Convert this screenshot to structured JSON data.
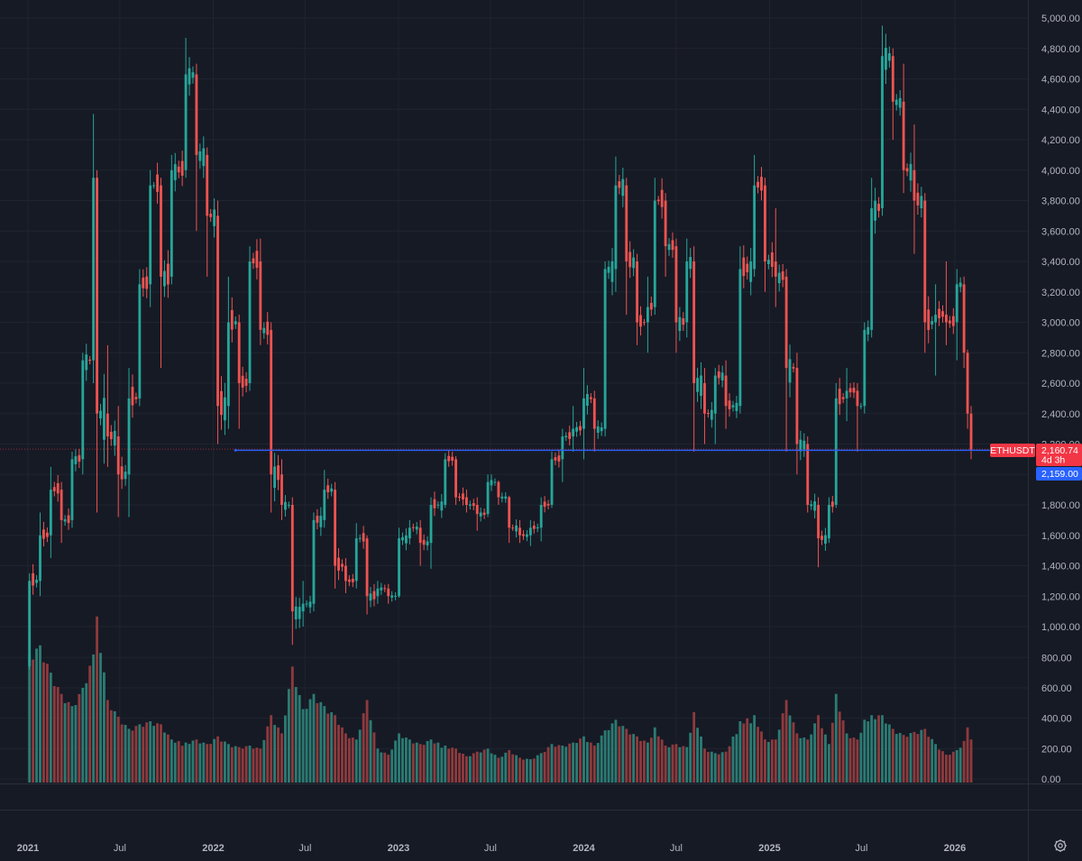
{
  "chart_data": {
    "type": "candlestick",
    "symbol": "ETHUSDT",
    "interval": "weekly",
    "price_axis": {
      "min": 0,
      "max": 5000,
      "ticks": [
        "5,000.00",
        "4,800.00",
        "4,600.00",
        "4,400.00",
        "4,200.00",
        "4,000.00",
        "3,800.00",
        "3,600.00",
        "3,400.00",
        "3,200.00",
        "3,000.00",
        "2,800.00",
        "2,600.00",
        "2,400.00",
        "2,200.00",
        "2,000.00",
        "1,800.00",
        "1,600.00",
        "1,400.00",
        "1,200.00",
        "1,000.00"
      ],
      "tick_values": [
        5000,
        4800,
        4600,
        4400,
        4200,
        4000,
        3800,
        3600,
        3400,
        3200,
        3000,
        2800,
        2600,
        2400,
        2200,
        2000,
        1800,
        1600,
        1400,
        1200,
        1000
      ]
    },
    "volume_axis": {
      "ticks": [
        "800.00",
        "600.00",
        "400.00",
        "200.00",
        "0.00"
      ],
      "tick_values": [
        800,
        600,
        400,
        200,
        0
      ]
    },
    "time_axis": {
      "labels": [
        {
          "text": "2021",
          "date": "2021-01-01",
          "year": true
        },
        {
          "text": "Jul",
          "date": "2021-07-01",
          "year": false
        },
        {
          "text": "2022",
          "date": "2022-01-01",
          "year": true
        },
        {
          "text": "Jul",
          "date": "2022-07-01",
          "year": false
        },
        {
          "text": "2023",
          "date": "2023-01-01",
          "year": true
        },
        {
          "text": "Jul",
          "date": "2023-07-01",
          "year": false
        },
        {
          "text": "2024",
          "date": "2024-01-01",
          "year": true
        },
        {
          "text": "Jul",
          "date": "2024-07-01",
          "year": false
        },
        {
          "text": "2025",
          "date": "2025-01-01",
          "year": true
        },
        {
          "text": "Jul",
          "date": "2025-07-01",
          "year": false
        },
        {
          "text": "2026",
          "date": "2026-01-01",
          "year": true
        }
      ]
    },
    "horizontal_line": {
      "price": 2159.0,
      "label": "2,159.00",
      "color": "#2962ff",
      "start_date": "2022-02-14"
    },
    "last_price": {
      "value": 2160.74,
      "label": "ETHUSDT",
      "price_text": "2,160.74",
      "countdown": "4d 3h",
      "color": "#f23645"
    },
    "colors": {
      "up": "#26a69a",
      "down": "#ef5350",
      "background": "#161a25",
      "grid": "#1f2430",
      "line": "#2962ff"
    },
    "grid": true,
    "candles": [
      {
        "date": "2021-01-04",
        "open": 740,
        "high": 1350,
        "low": 720,
        "close": 1300,
        "volume": 820
      },
      {
        "date": "2021-01-25",
        "open": 1300,
        "high": 1750,
        "low": 1200,
        "close": 1600,
        "volume": 880
      },
      {
        "date": "2021-02-15",
        "open": 1600,
        "high": 2050,
        "low": 1450,
        "close": 1900,
        "volume": 700
      },
      {
        "date": "2021-03-08",
        "open": 1900,
        "high": 1950,
        "low": 1550,
        "close": 1700,
        "volume": 560
      },
      {
        "date": "2021-03-29",
        "open": 1700,
        "high": 2150,
        "low": 1650,
        "close": 2100,
        "volume": 480
      },
      {
        "date": "2021-04-19",
        "open": 2100,
        "high": 2800,
        "low": 2000,
        "close": 2750,
        "volume": 600
      },
      {
        "date": "2021-05-10",
        "open": 2750,
        "high": 4370,
        "low": 2600,
        "close": 3950,
        "volume": 820
      },
      {
        "date": "2021-05-17",
        "open": 3950,
        "high": 4000,
        "low": 1750,
        "close": 2400,
        "volume": 1070
      },
      {
        "date": "2021-06-07",
        "open": 2400,
        "high": 2850,
        "low": 2050,
        "close": 2250,
        "volume": 520
      },
      {
        "date": "2021-06-28",
        "open": 2250,
        "high": 2450,
        "low": 1720,
        "close": 2000,
        "volume": 410
      },
      {
        "date": "2021-07-19",
        "open": 2000,
        "high": 2700,
        "low": 1720,
        "close": 2500,
        "volume": 330
      },
      {
        "date": "2021-08-09",
        "open": 2500,
        "high": 3350,
        "low": 2450,
        "close": 3250,
        "volume": 360
      },
      {
        "date": "2021-08-30",
        "open": 3250,
        "high": 4000,
        "low": 3100,
        "close": 3900,
        "volume": 380
      },
      {
        "date": "2021-09-20",
        "open": 3900,
        "high": 3950,
        "low": 2700,
        "close": 3300,
        "volume": 360
      },
      {
        "date": "2021-10-11",
        "open": 3300,
        "high": 4100,
        "low": 3250,
        "close": 4000,
        "volume": 260
      },
      {
        "date": "2021-11-08",
        "open": 4000,
        "high": 4870,
        "low": 3950,
        "close": 4630,
        "volume": 240
      },
      {
        "date": "2021-11-29",
        "open": 4630,
        "high": 4700,
        "low": 3600,
        "close": 4100,
        "volume": 260
      },
      {
        "date": "2021-12-20",
        "open": 4100,
        "high": 4150,
        "low": 3300,
        "close": 3700,
        "volume": 230
      },
      {
        "date": "2022-01-10",
        "open": 3700,
        "high": 3800,
        "low": 2200,
        "close": 2450,
        "volume": 280
      },
      {
        "date": "2022-01-31",
        "open": 2450,
        "high": 3300,
        "low": 2300,
        "close": 3000,
        "volume": 230
      },
      {
        "date": "2022-02-21",
        "open": 3000,
        "high": 3050,
        "low": 2300,
        "close": 2600,
        "volume": 210
      },
      {
        "date": "2022-03-14",
        "open": 2600,
        "high": 3500,
        "low": 2550,
        "close": 3400,
        "volume": 220
      },
      {
        "date": "2022-04-04",
        "open": 3400,
        "high": 3550,
        "low": 2850,
        "close": 2950,
        "volume": 200
      },
      {
        "date": "2022-04-25",
        "open": 2950,
        "high": 3000,
        "low": 1750,
        "close": 2000,
        "volume": 420
      },
      {
        "date": "2022-05-16",
        "open": 2000,
        "high": 2100,
        "low": 1700,
        "close": 1800,
        "volume": 300
      },
      {
        "date": "2022-06-06",
        "open": 1800,
        "high": 1850,
        "low": 880,
        "close": 1100,
        "volume": 740
      },
      {
        "date": "2022-06-27",
        "open": 1100,
        "high": 1300,
        "low": 1000,
        "close": 1150,
        "volume": 460
      },
      {
        "date": "2022-07-18",
        "open": 1150,
        "high": 1750,
        "low": 1100,
        "close": 1700,
        "volume": 560
      },
      {
        "date": "2022-08-08",
        "open": 1700,
        "high": 2030,
        "low": 1650,
        "close": 1900,
        "volume": 480
      },
      {
        "date": "2022-08-29",
        "open": 1900,
        "high": 1950,
        "low": 1250,
        "close": 1400,
        "volume": 420
      },
      {
        "date": "2022-09-19",
        "open": 1400,
        "high": 1450,
        "low": 1220,
        "close": 1300,
        "volume": 300
      },
      {
        "date": "2022-10-10",
        "open": 1300,
        "high": 1680,
        "low": 1250,
        "close": 1580,
        "volume": 260
      },
      {
        "date": "2022-10-31",
        "open": 1580,
        "high": 1600,
        "low": 1080,
        "close": 1200,
        "volume": 520
      },
      {
        "date": "2022-11-21",
        "open": 1200,
        "high": 1300,
        "low": 1150,
        "close": 1250,
        "volume": 200
      },
      {
        "date": "2022-12-12",
        "open": 1250,
        "high": 1280,
        "low": 1150,
        "close": 1200,
        "volume": 160
      },
      {
        "date": "2023-01-02",
        "open": 1200,
        "high": 1650,
        "low": 1190,
        "close": 1580,
        "volume": 300
      },
      {
        "date": "2023-01-23",
        "open": 1580,
        "high": 1700,
        "low": 1540,
        "close": 1650,
        "volume": 260
      },
      {
        "date": "2023-02-13",
        "open": 1650,
        "high": 1700,
        "low": 1400,
        "close": 1550,
        "volume": 230
      },
      {
        "date": "2023-03-06",
        "open": 1550,
        "high": 1850,
        "low": 1380,
        "close": 1800,
        "volume": 260
      },
      {
        "date": "2023-04-03",
        "open": 1800,
        "high": 2140,
        "low": 1780,
        "close": 2100,
        "volume": 220
      },
      {
        "date": "2023-04-24",
        "open": 2100,
        "high": 2120,
        "low": 1800,
        "close": 1850,
        "volume": 200
      },
      {
        "date": "2023-05-15",
        "open": 1850,
        "high": 1900,
        "low": 1750,
        "close": 1800,
        "volume": 150
      },
      {
        "date": "2023-06-05",
        "open": 1800,
        "high": 1850,
        "low": 1630,
        "close": 1740,
        "volume": 180
      },
      {
        "date": "2023-06-26",
        "open": 1740,
        "high": 2000,
        "low": 1720,
        "close": 1950,
        "volume": 200
      },
      {
        "date": "2023-07-17",
        "open": 1950,
        "high": 1960,
        "low": 1800,
        "close": 1850,
        "volume": 140
      },
      {
        "date": "2023-08-07",
        "open": 1850,
        "high": 1860,
        "low": 1550,
        "close": 1650,
        "volume": 190
      },
      {
        "date": "2023-08-28",
        "open": 1650,
        "high": 1700,
        "low": 1550,
        "close": 1600,
        "volume": 140
      },
      {
        "date": "2023-09-18",
        "open": 1600,
        "high": 1700,
        "low": 1530,
        "close": 1650,
        "volume": 130
      },
      {
        "date": "2023-10-09",
        "open": 1650,
        "high": 1850,
        "low": 1560,
        "close": 1800,
        "volume": 170
      },
      {
        "date": "2023-10-30",
        "open": 1800,
        "high": 2150,
        "low": 1780,
        "close": 2100,
        "volume": 230
      },
      {
        "date": "2023-11-20",
        "open": 2100,
        "high": 2300,
        "low": 1950,
        "close": 2250,
        "volume": 220
      },
      {
        "date": "2023-12-11",
        "open": 2250,
        "high": 2450,
        "low": 2150,
        "close": 2300,
        "volume": 240
      },
      {
        "date": "2024-01-01",
        "open": 2300,
        "high": 2700,
        "low": 2100,
        "close": 2500,
        "volume": 280
      },
      {
        "date": "2024-01-22",
        "open": 2500,
        "high": 2550,
        "low": 2150,
        "close": 2300,
        "volume": 220
      },
      {
        "date": "2024-02-12",
        "open": 2300,
        "high": 3400,
        "low": 2250,
        "close": 3350,
        "volume": 320
      },
      {
        "date": "2024-03-04",
        "open": 3350,
        "high": 4090,
        "low": 3200,
        "close": 3900,
        "volume": 390
      },
      {
        "date": "2024-03-25",
        "open": 3900,
        "high": 3950,
        "low": 3050,
        "close": 3400,
        "volume": 330
      },
      {
        "date": "2024-04-15",
        "open": 3400,
        "high": 3450,
        "low": 2850,
        "close": 3000,
        "volume": 280
      },
      {
        "date": "2024-05-06",
        "open": 3000,
        "high": 3300,
        "low": 2800,
        "close": 3100,
        "volume": 240
      },
      {
        "date": "2024-05-20",
        "open": 3100,
        "high": 3950,
        "low": 3050,
        "close": 3800,
        "volume": 340
      },
      {
        "date": "2024-06-10",
        "open": 3800,
        "high": 3850,
        "low": 3300,
        "close": 3500,
        "volume": 220
      },
      {
        "date": "2024-07-01",
        "open": 3500,
        "high": 3550,
        "low": 2800,
        "close": 3000,
        "volume": 230
      },
      {
        "date": "2024-07-22",
        "open": 3000,
        "high": 3550,
        "low": 2900,
        "close": 3400,
        "volume": 210
      },
      {
        "date": "2024-08-05",
        "open": 3400,
        "high": 3500,
        "low": 2150,
        "close": 2600,
        "volume": 440
      },
      {
        "date": "2024-08-26",
        "open": 2600,
        "high": 2700,
        "low": 2200,
        "close": 2400,
        "volume": 200
      },
      {
        "date": "2024-09-16",
        "open": 2400,
        "high": 2700,
        "low": 2200,
        "close": 2650,
        "volume": 170
      },
      {
        "date": "2024-10-07",
        "open": 2650,
        "high": 2750,
        "low": 2300,
        "close": 2450,
        "volume": 180
      },
      {
        "date": "2024-11-04",
        "open": 2450,
        "high": 3500,
        "low": 2400,
        "close": 3350,
        "volume": 380
      },
      {
        "date": "2024-12-02",
        "open": 3350,
        "high": 4100,
        "low": 3300,
        "close": 3900,
        "volume": 420
      },
      {
        "date": "2024-12-23",
        "open": 3900,
        "high": 3950,
        "low": 3200,
        "close": 3400,
        "volume": 260
      },
      {
        "date": "2025-01-13",
        "open": 3400,
        "high": 3750,
        "low": 3100,
        "close": 3300,
        "volume": 260
      },
      {
        "date": "2025-02-03",
        "open": 3300,
        "high": 3350,
        "low": 2150,
        "close": 2700,
        "volume": 520
      },
      {
        "date": "2025-02-24",
        "open": 2700,
        "high": 2800,
        "low": 2000,
        "close": 2200,
        "volume": 300
      },
      {
        "date": "2025-03-17",
        "open": 2200,
        "high": 2250,
        "low": 1750,
        "close": 1800,
        "volume": 260
      },
      {
        "date": "2025-04-07",
        "open": 1800,
        "high": 1850,
        "low": 1390,
        "close": 1580,
        "volume": 420
      },
      {
        "date": "2025-04-28",
        "open": 1580,
        "high": 1850,
        "low": 1550,
        "close": 1800,
        "volume": 230
      },
      {
        "date": "2025-05-12",
        "open": 1800,
        "high": 2600,
        "low": 1780,
        "close": 2500,
        "volume": 560
      },
      {
        "date": "2025-06-02",
        "open": 2500,
        "high": 2700,
        "low": 2350,
        "close": 2550,
        "volume": 300
      },
      {
        "date": "2025-06-23",
        "open": 2550,
        "high": 2600,
        "low": 2150,
        "close": 2450,
        "volume": 260
      },
      {
        "date": "2025-07-07",
        "open": 2450,
        "high": 3000,
        "low": 2400,
        "close": 2950,
        "volume": 390
      },
      {
        "date": "2025-07-21",
        "open": 2950,
        "high": 3950,
        "low": 2900,
        "close": 3750,
        "volume": 420
      },
      {
        "date": "2025-08-11",
        "open": 3750,
        "high": 4950,
        "low": 3700,
        "close": 4750,
        "volume": 420
      },
      {
        "date": "2025-09-01",
        "open": 4750,
        "high": 4800,
        "low": 4200,
        "close": 4450,
        "volume": 330
      },
      {
        "date": "2025-09-22",
        "open": 4450,
        "high": 4700,
        "low": 3850,
        "close": 4000,
        "volume": 290
      },
      {
        "date": "2025-10-13",
        "open": 4000,
        "high": 4300,
        "low": 3450,
        "close": 3800,
        "volume": 310
      },
      {
        "date": "2025-11-03",
        "open": 3800,
        "high": 3850,
        "low": 2800,
        "close": 3000,
        "volume": 330
      },
      {
        "date": "2025-11-24",
        "open": 3000,
        "high": 3250,
        "low": 2650,
        "close": 3050,
        "volume": 230
      },
      {
        "date": "2025-12-15",
        "open": 3050,
        "high": 3400,
        "low": 2850,
        "close": 3000,
        "volume": 160
      },
      {
        "date": "2026-01-05",
        "open": 3000,
        "high": 3350,
        "low": 2750,
        "close": 3250,
        "volume": 190
      },
      {
        "date": "2026-01-19",
        "open": 3250,
        "high": 3300,
        "low": 2700,
        "close": 2800,
        "volume": 250
      },
      {
        "date": "2026-01-26",
        "open": 2800,
        "high": 2820,
        "low": 2300,
        "close": 2400,
        "volume": 340
      },
      {
        "date": "2026-02-02",
        "open": 2400,
        "high": 2450,
        "low": 2100,
        "close": 2160.74,
        "volume": 260
      }
    ]
  }
}
